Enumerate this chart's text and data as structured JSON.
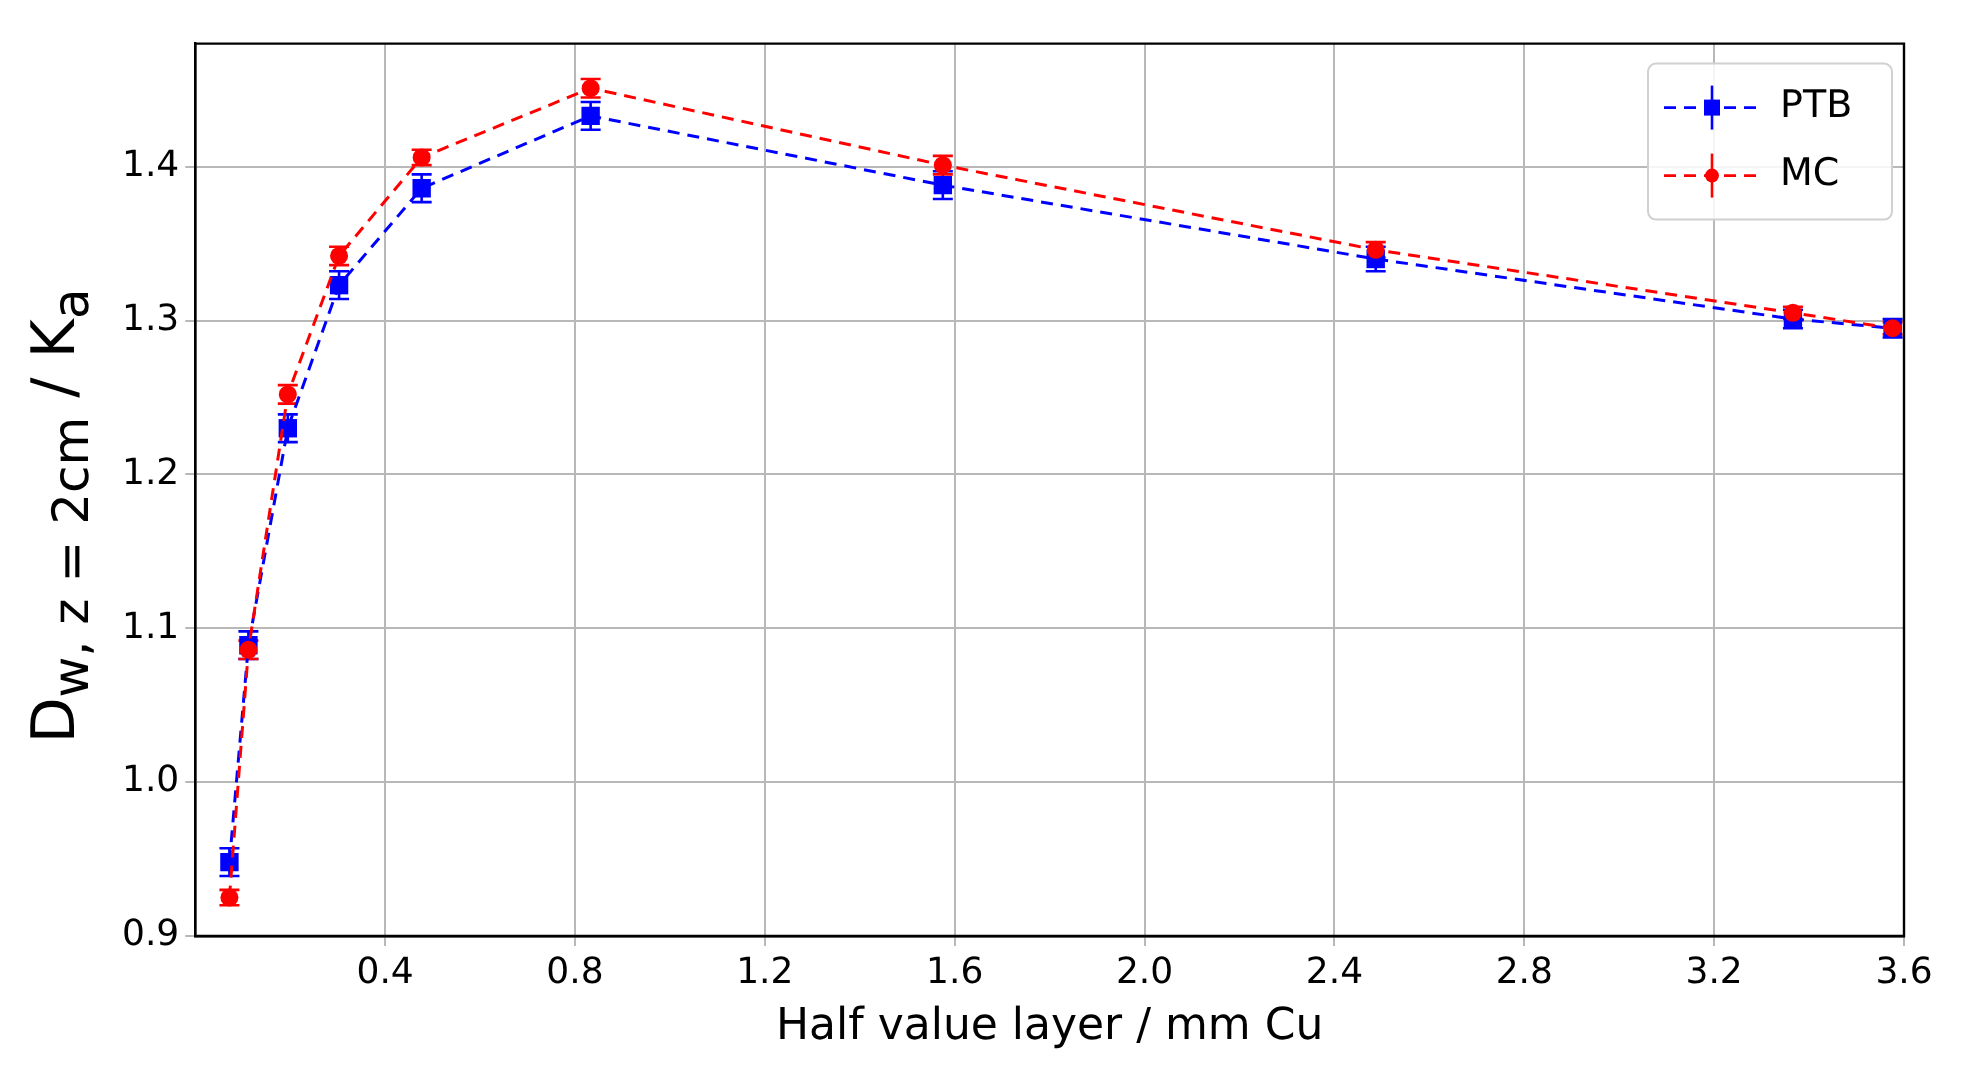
{
  "chart_data": {
    "type": "line",
    "xlabel": "Half value layer / mm Cu",
    "ylabel": "D$_{w, z = 2cm}$ / K$_{a}$",
    "x": [
      0.072,
      0.112,
      0.195,
      0.303,
      0.477,
      0.833,
      1.575,
      2.487,
      3.366,
      3.576
    ],
    "series": [
      {
        "name": "PTB",
        "color": "#0000ff",
        "marker": "square",
        "values": [
          0.948,
          1.089,
          1.23,
          1.323,
          1.386,
          1.433,
          1.388,
          1.34,
          1.301,
          1.295
        ],
        "errors": [
          0.009,
          0.009,
          0.009,
          0.009,
          0.009,
          0.009,
          0.009,
          0.008,
          0.006,
          0.006
        ]
      },
      {
        "name": "MC",
        "color": "#ff0000",
        "marker": "circle",
        "values": [
          0.925,
          1.086,
          1.252,
          1.342,
          1.406,
          1.451,
          1.401,
          1.346,
          1.305,
          1.295
        ],
        "errors": [
          0.005,
          0.006,
          0.006,
          0.006,
          0.005,
          0.006,
          0.006,
          0.005,
          0.004,
          0.004
        ]
      }
    ],
    "xlim": [
      0,
      3.6
    ],
    "xticks": [
      0.4,
      0.8,
      1.2,
      1.6,
      {
        "value": 2,
        "label": "2.0"
      },
      2.4,
      2.8,
      3.2,
      3.6
    ],
    "ylim": [
      0.9,
      1.48
    ],
    "yticks": [
      0.9,
      {
        "value": 1,
        "label": "1.0"
      },
      1.1,
      1.2,
      1.3,
      1.4
    ],
    "grid": true,
    "legend": "top right",
    "line_style": "dashed"
  }
}
